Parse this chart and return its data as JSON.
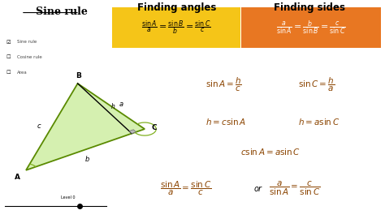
{
  "bg_color": "#ffffff",
  "heading_angles": "Finding angles",
  "heading_sides": "Finding sides",
  "box_angles_color": "#f5c518",
  "box_sides_color": "#e87722",
  "text_color_math": "#8b4400",
  "tri_color_fill": "#d5f0b0",
  "tri_color_edge": "#5a8a00",
  "sidebar_items": [
    "Sine rule",
    "Cosine rule",
    "Area"
  ]
}
